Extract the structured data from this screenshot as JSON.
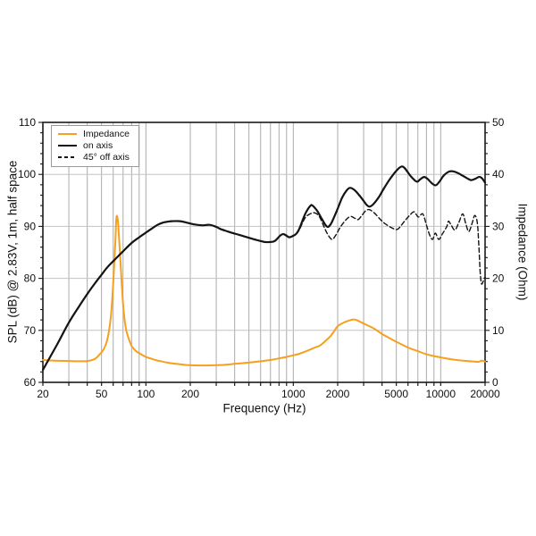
{
  "colors": {
    "impedance": "#F5A01E",
    "spl": "#141414",
    "grid_vertical": "#ababab",
    "grid_horizontal": "#c3c3c3",
    "frame": "#1a1a1a",
    "legend_border": "#999999"
  },
  "chart_data": {
    "type": "line",
    "title": "",
    "xlabel": "Frequency (Hz)",
    "ylabel_left": "SPL (dB) @ 2.83V, 1m, half space",
    "ylabel_right": "Impedance (Ohm)",
    "xscale": "log",
    "xlim": [
      20,
      20000
    ],
    "ylim_left": [
      60,
      110
    ],
    "ylim_right": [
      0,
      50
    ],
    "x_tick_labels": [
      {
        "f": 20,
        "label": "20"
      },
      {
        "f": 50,
        "label": "50"
      },
      {
        "f": 100,
        "label": "100"
      },
      {
        "f": 200,
        "label": "200"
      },
      {
        "f": 1000,
        "label": "1000"
      },
      {
        "f": 2000,
        "label": "2000"
      },
      {
        "f": 5000,
        "label": "5000"
      },
      {
        "f": 10000,
        "label": "10000"
      },
      {
        "f": 20000,
        "label": "20000"
      }
    ],
    "x_gridlines": [
      30,
      40,
      50,
      60,
      70,
      80,
      90,
      100,
      200,
      300,
      400,
      500,
      600,
      700,
      800,
      900,
      1000,
      2000,
      3000,
      4000,
      5000,
      6000,
      7000,
      8000,
      9000,
      10000,
      20000
    ],
    "y_left_ticks": [
      60,
      70,
      80,
      90,
      100,
      110
    ],
    "y_right_ticks": [
      0,
      10,
      20,
      30,
      40,
      50
    ],
    "y_gridlines_left": [
      70,
      80,
      90,
      100
    ],
    "minor_tick_step_y": 2,
    "legend_position": "upper-left",
    "series": [
      {
        "name": "Impedance",
        "axis": "right",
        "style": "solid",
        "color": "#F5A01E",
        "unit": "Ohm",
        "points": [
          [
            20,
            4.3
          ],
          [
            25,
            4.15
          ],
          [
            30,
            4.1
          ],
          [
            35,
            4.05
          ],
          [
            40,
            4.1
          ],
          [
            45,
            4.5
          ],
          [
            48,
            5.2
          ],
          [
            52,
            6.5
          ],
          [
            55,
            8.5
          ],
          [
            58,
            13
          ],
          [
            60,
            19
          ],
          [
            62,
            27
          ],
          [
            63,
            31.5
          ],
          [
            64,
            31.8
          ],
          [
            65,
            30
          ],
          [
            67,
            24
          ],
          [
            70,
            15
          ],
          [
            73,
            10.5
          ],
          [
            76,
            8.6
          ],
          [
            80,
            7.0
          ],
          [
            85,
            6.1
          ],
          [
            90,
            5.6
          ],
          [
            100,
            4.9
          ],
          [
            110,
            4.5
          ],
          [
            120,
            4.2
          ],
          [
            140,
            3.8
          ],
          [
            160,
            3.55
          ],
          [
            180,
            3.4
          ],
          [
            200,
            3.3
          ],
          [
            250,
            3.25
          ],
          [
            300,
            3.3
          ],
          [
            350,
            3.4
          ],
          [
            400,
            3.55
          ],
          [
            500,
            3.8
          ],
          [
            600,
            4.05
          ],
          [
            700,
            4.3
          ],
          [
            800,
            4.6
          ],
          [
            900,
            4.9
          ],
          [
            1000,
            5.2
          ],
          [
            1100,
            5.5
          ],
          [
            1200,
            5.9
          ],
          [
            1300,
            6.3
          ],
          [
            1400,
            6.7
          ],
          [
            1500,
            7.0
          ],
          [
            1600,
            7.6
          ],
          [
            1700,
            8.3
          ],
          [
            1750,
            8.6
          ],
          [
            1800,
            9.0
          ],
          [
            1900,
            9.9
          ],
          [
            2000,
            10.8
          ],
          [
            2200,
            11.5
          ],
          [
            2400,
            11.9
          ],
          [
            2550,
            12.1
          ],
          [
            2700,
            11.95
          ],
          [
            3000,
            11.3
          ],
          [
            3500,
            10.4
          ],
          [
            4000,
            9.3
          ],
          [
            4500,
            8.5
          ],
          [
            5000,
            7.8
          ],
          [
            6000,
            6.7
          ],
          [
            7000,
            6.0
          ],
          [
            8000,
            5.4
          ],
          [
            9000,
            5.05
          ],
          [
            10000,
            4.8
          ],
          [
            12000,
            4.4
          ],
          [
            14000,
            4.2
          ],
          [
            16000,
            4.05
          ],
          [
            18000,
            3.95
          ],
          [
            19000,
            4.15
          ],
          [
            20000,
            4.0
          ]
        ]
      },
      {
        "name": "on axis",
        "axis": "left",
        "style": "solid",
        "color": "#141414",
        "unit": "dB",
        "points": [
          [
            20,
            62.4
          ],
          [
            25,
            67.3
          ],
          [
            30,
            71.5
          ],
          [
            35,
            74.5
          ],
          [
            40,
            77.0
          ],
          [
            45,
            79.0
          ],
          [
            50,
            80.7
          ],
          [
            55,
            82.2
          ],
          [
            63,
            83.9
          ],
          [
            70,
            85.2
          ],
          [
            80,
            86.8
          ],
          [
            90,
            87.9
          ],
          [
            100,
            88.8
          ],
          [
            110,
            89.6
          ],
          [
            120,
            90.3
          ],
          [
            130,
            90.7
          ],
          [
            140,
            90.9
          ],
          [
            150,
            91.0
          ],
          [
            170,
            91.0
          ],
          [
            190,
            90.7
          ],
          [
            210,
            90.4
          ],
          [
            240,
            90.2
          ],
          [
            270,
            90.3
          ],
          [
            300,
            89.9
          ],
          [
            320,
            89.5
          ],
          [
            360,
            89.0
          ],
          [
            400,
            88.6
          ],
          [
            450,
            88.2
          ],
          [
            500,
            87.8
          ],
          [
            560,
            87.4
          ],
          [
            640,
            87.0
          ],
          [
            700,
            87.0
          ],
          [
            750,
            87.2
          ],
          [
            820,
            88.3
          ],
          [
            860,
            88.5
          ],
          [
            900,
            88.2
          ],
          [
            940,
            87.9
          ],
          [
            1000,
            88.2
          ],
          [
            1050,
            88.6
          ],
          [
            1100,
            89.6
          ],
          [
            1200,
            92.3
          ],
          [
            1300,
            93.9
          ],
          [
            1350,
            94.0
          ],
          [
            1450,
            93.0
          ],
          [
            1550,
            91.6
          ],
          [
            1650,
            90.3
          ],
          [
            1720,
            89.9
          ],
          [
            1800,
            90.5
          ],
          [
            1900,
            91.9
          ],
          [
            2000,
            93.4
          ],
          [
            2150,
            95.6
          ],
          [
            2300,
            96.9
          ],
          [
            2420,
            97.4
          ],
          [
            2600,
            97.0
          ],
          [
            2800,
            96.0
          ],
          [
            3000,
            94.9
          ],
          [
            3150,
            94.1
          ],
          [
            3300,
            93.8
          ],
          [
            3500,
            94.3
          ],
          [
            3800,
            95.6
          ],
          [
            4100,
            97.2
          ],
          [
            4500,
            99.0
          ],
          [
            5000,
            100.7
          ],
          [
            5400,
            101.5
          ],
          [
            5700,
            101.2
          ],
          [
            6200,
            99.8
          ],
          [
            6700,
            98.8
          ],
          [
            6950,
            98.6
          ],
          [
            7300,
            99.1
          ],
          [
            7700,
            99.5
          ],
          [
            8100,
            99.2
          ],
          [
            8700,
            98.3
          ],
          [
            9250,
            97.9
          ],
          [
            9800,
            98.6
          ],
          [
            10500,
            99.8
          ],
          [
            11300,
            100.5
          ],
          [
            12000,
            100.6
          ],
          [
            13000,
            100.3
          ],
          [
            14000,
            99.8
          ],
          [
            15000,
            99.3
          ],
          [
            16000,
            98.9
          ],
          [
            17000,
            99.1
          ],
          [
            18200,
            99.5
          ],
          [
            19000,
            99.3
          ],
          [
            20000,
            98.4
          ]
        ]
      },
      {
        "name": "45° off axis",
        "axis": "left",
        "style": "dashed",
        "color": "#141414",
        "unit": "dB",
        "points": [
          [
            950,
            87.9
          ],
          [
            1000,
            88.2
          ],
          [
            1050,
            88.6
          ],
          [
            1100,
            89.4
          ],
          [
            1200,
            91.6
          ],
          [
            1300,
            92.4
          ],
          [
            1400,
            92.6
          ],
          [
            1500,
            91.9
          ],
          [
            1600,
            90.2
          ],
          [
            1700,
            88.6
          ],
          [
            1830,
            87.5
          ],
          [
            1950,
            88.4
          ],
          [
            2100,
            90.0
          ],
          [
            2300,
            91.4
          ],
          [
            2450,
            91.9
          ],
          [
            2600,
            91.6
          ],
          [
            2750,
            91.3
          ],
          [
            2900,
            92.0
          ],
          [
            3100,
            93.0
          ],
          [
            3300,
            93.2
          ],
          [
            3600,
            92.4
          ],
          [
            3900,
            91.3
          ],
          [
            4200,
            90.5
          ],
          [
            4600,
            89.8
          ],
          [
            5050,
            89.4
          ],
          [
            5400,
            90.2
          ],
          [
            5800,
            91.3
          ],
          [
            6200,
            92.2
          ],
          [
            6600,
            92.8
          ],
          [
            7050,
            91.8
          ],
          [
            7550,
            92.4
          ],
          [
            8000,
            90.3
          ],
          [
            8400,
            88.4
          ],
          [
            8800,
            87.5
          ],
          [
            9200,
            88.7
          ],
          [
            9700,
            87.5
          ],
          [
            10300,
            88.6
          ],
          [
            11000,
            90.0
          ],
          [
            11300,
            91.0
          ],
          [
            11800,
            90.2
          ],
          [
            12500,
            89.3
          ],
          [
            13300,
            90.8
          ],
          [
            14100,
            92.4
          ],
          [
            14800,
            90.5
          ],
          [
            15500,
            89.0
          ],
          [
            16300,
            90.5
          ],
          [
            17000,
            92.1
          ],
          [
            17700,
            90.8
          ],
          [
            18100,
            87.0
          ],
          [
            18500,
            81.5
          ],
          [
            18900,
            79.0
          ],
          [
            19400,
            79.4
          ],
          [
            19700,
            80.0
          ],
          [
            20000,
            80.2
          ]
        ]
      }
    ]
  },
  "legend": {
    "items": [
      {
        "label": "Impedance"
      },
      {
        "label": "on axis"
      },
      {
        "label": "45° off axis"
      }
    ]
  }
}
